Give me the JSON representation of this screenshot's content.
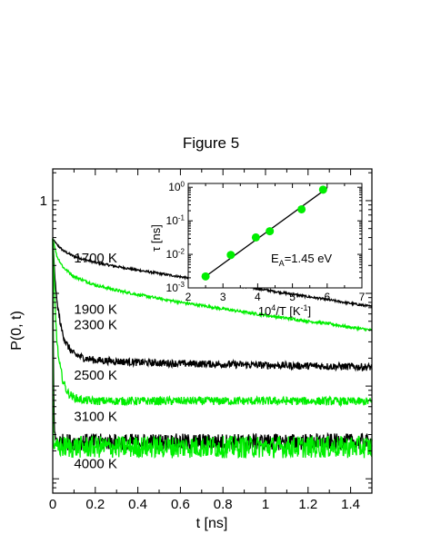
{
  "figure": {
    "title": "Figure 5"
  },
  "chart_data": [
    {
      "type": "line",
      "title": "Figure 5",
      "xlabel": "t [ns]",
      "ylabel": "P(0, t)",
      "xlim": [
        0,
        1.5
      ],
      "xticks": [
        0,
        0.2,
        0.4,
        0.6,
        0.8,
        1,
        1.2,
        1.4
      ],
      "xtick_labels": [
        "0",
        "0.2",
        "0.4",
        "0.6",
        "0.8",
        "1",
        "1.2",
        "1.4"
      ],
      "yscale": "log",
      "ylim": [
        0.0007,
        2.2
      ],
      "yticks": [
        1
      ],
      "ytick_labels": [
        "1"
      ],
      "grid": false,
      "series": [
        {
          "name": "1700 K",
          "color": "#000000",
          "t": [
            0,
            0.02,
            0.05,
            0.1,
            0.2,
            0.3,
            0.4,
            0.5,
            0.6,
            0.7,
            0.8,
            0.9,
            1.0,
            1.1,
            1.2,
            1.3,
            1.4,
            1.5
          ],
          "p": [
            0.39,
            0.335,
            0.288,
            0.25,
            0.215,
            0.195,
            0.178,
            0.164,
            0.151,
            0.139,
            0.128,
            0.118,
            0.109,
            0.1,
            0.092,
            0.085,
            0.078,
            0.072
          ],
          "noise": 0.012
        },
        {
          "name": "1900 K",
          "color": "#00ee00",
          "t": [
            0,
            0.02,
            0.05,
            0.1,
            0.2,
            0.3,
            0.4,
            0.5,
            0.6,
            0.7,
            0.8,
            0.9,
            1.0,
            1.1,
            1.2,
            1.3,
            1.4,
            1.5
          ],
          "p": [
            0.39,
            0.25,
            0.19,
            0.152,
            0.123,
            0.108,
            0.097,
            0.088,
            0.08,
            0.074,
            0.068,
            0.063,
            0.058,
            0.054,
            0.05,
            0.047,
            0.043,
            0.04
          ],
          "noise": 0.015
        },
        {
          "name": "2300 K",
          "color": "#000000",
          "t": [
            0,
            0.01,
            0.02,
            0.04,
            0.06,
            0.08,
            0.1,
            0.15,
            0.2,
            0.3,
            0.4,
            0.6,
            0.8,
            1.0,
            1.2,
            1.4,
            1.5
          ],
          "p": [
            0.39,
            0.15,
            0.08,
            0.042,
            0.03,
            0.025,
            0.022,
            0.02,
            0.019,
            0.0185,
            0.018,
            0.0175,
            0.0172,
            0.0168,
            0.0165,
            0.0162,
            0.016
          ],
          "noise": 0.04
        },
        {
          "name": "2500 K",
          "color": "#00ee00",
          "t": [
            0,
            0.01,
            0.02,
            0.03,
            0.05,
            0.07,
            0.1,
            0.15,
            0.2,
            0.3,
            0.5,
            0.8,
            1.0,
            1.2,
            1.5
          ],
          "p": [
            0.39,
            0.08,
            0.03,
            0.018,
            0.011,
            0.0085,
            0.0075,
            0.007,
            0.0069,
            0.0069,
            0.0069,
            0.0069,
            0.0069,
            0.0069,
            0.0068
          ],
          "noise": 0.045
        },
        {
          "name": "3100 K",
          "color": "#000000",
          "t": [
            0,
            0.002,
            0.004,
            0.006,
            0.008,
            0.012,
            0.02,
            0.03,
            0.05,
            0.1,
            0.5,
            1.0,
            1.5
          ],
          "p": [
            0.39,
            0.05,
            0.012,
            0.005,
            0.0033,
            0.0028,
            0.0026,
            0.0025,
            0.0025,
            0.0025,
            0.0025,
            0.0025,
            0.0025
          ],
          "noise": 0.09
        },
        {
          "name": "4000 K",
          "color": "#00ee00",
          "t": [
            0,
            0.001,
            0.002,
            0.003,
            0.005,
            0.01,
            0.5,
            1.0,
            1.5
          ],
          "p": [
            0.39,
            0.02,
            0.004,
            0.0025,
            0.0022,
            0.0022,
            0.0022,
            0.0022,
            0.0022
          ],
          "noise": 0.12
        }
      ],
      "annotations": [
        {
          "text": "1700 K",
          "t": 0.1,
          "p": 0.215
        },
        {
          "text": "1900 K",
          "t": 0.1,
          "p": 0.06
        },
        {
          "text": "2300 K",
          "t": 0.1,
          "p": 0.041
        },
        {
          "text": "2500 K",
          "t": 0.1,
          "p": 0.0118
        },
        {
          "text": "3100 K",
          "t": 0.1,
          "p": 0.0042
        },
        {
          "text": "4000 K",
          "t": 0.1,
          "p": 0.0013
        }
      ]
    },
    {
      "type": "scatter",
      "inset": true,
      "xlabel": "10^4/T [K^-1]",
      "ylabel": "τ [ns]",
      "xlim": [
        2,
        7
      ],
      "xticks": [
        2,
        3,
        4,
        5,
        6,
        7
      ],
      "yscale": "log",
      "ylim": [
        0.001,
        1.3
      ],
      "yticks": [
        0.001,
        0.01,
        0.1,
        1
      ],
      "ytick_labels": [
        "10^-3",
        "10^-2",
        "10^-1",
        "10^0"
      ],
      "points_color": "#00ee00",
      "x": [
        2.5,
        3.226,
        3.947,
        4.348,
        5.263,
        5.882
      ],
      "y": [
        0.0022,
        0.0096,
        0.032,
        0.049,
        0.22,
        0.85
      ],
      "fit_line": {
        "x": [
          2.5,
          6.0
        ],
        "y": [
          0.0022,
          0.94
        ],
        "color": "#000000"
      },
      "annotation": "E_A=1.45 eV"
    }
  ]
}
